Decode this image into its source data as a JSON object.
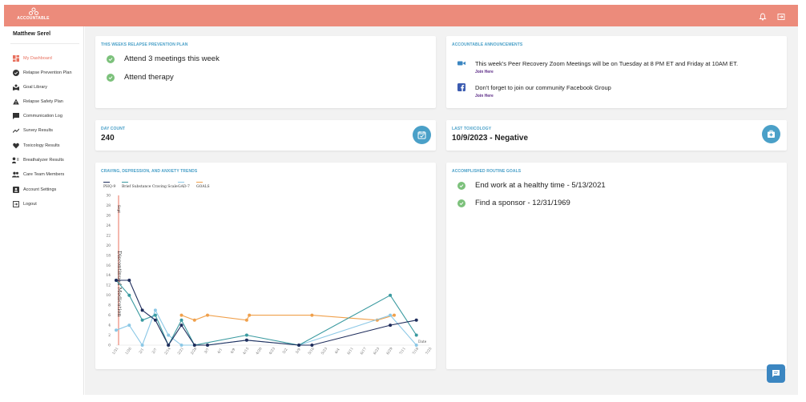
{
  "app": {
    "logo_text": "ACCOUNTABLE"
  },
  "topbar": {
    "icons": [
      "bell-icon",
      "logout-icon"
    ]
  },
  "sidebar": {
    "user_name": "Matthew Serel",
    "items": [
      {
        "label": "My Dashboard",
        "icon": "dashboard-icon",
        "active": true
      },
      {
        "label": "Relapse Prevention Plan",
        "icon": "check-circle-icon"
      },
      {
        "label": "Goal Library",
        "icon": "library-icon"
      },
      {
        "label": "Relapse Safety Plan",
        "icon": "warning-icon"
      },
      {
        "label": "Communication Log",
        "icon": "chat-icon"
      },
      {
        "label": "Survey Results",
        "icon": "trend-icon"
      },
      {
        "label": "Toxicology Results",
        "icon": "heart-icon"
      },
      {
        "label": "Breathalyzer Results",
        "icon": "breath-icon"
      },
      {
        "label": "Care Team Members",
        "icon": "people-icon"
      },
      {
        "label": "Account Settings",
        "icon": "account-icon"
      },
      {
        "label": "Logout",
        "icon": "logout-icon"
      }
    ]
  },
  "plan": {
    "title": "THIS WEEKS RELAPSE PREVENTION PLAN",
    "items": [
      "Attend 3 meetings this week",
      "Attend therapy"
    ]
  },
  "announcements": {
    "title": "ACCOUNTABLE ANNOUNCEMENTS",
    "items": [
      {
        "text": "This week's Peer Recovery Zoom Meetings will be on Tuesday at 8 PM ET and Friday at 10AM ET.",
        "link": "Join Here",
        "icon": "video-camera-icon"
      },
      {
        "text": "Don't forget to join our community Facebook Group",
        "link": "Join Here",
        "icon": "facebook-icon"
      }
    ]
  },
  "day_count": {
    "title": "DAY COUNT",
    "value": "240",
    "icon": "calendar-check-icon"
  },
  "toxicology": {
    "title": "LAST TOXICOLOGY",
    "value": "10/9/2023 - Negative",
    "icon": "medical-kit-icon"
  },
  "trends": {
    "title": "CRAVING, DEPRESSION, AND ANXIETY TRENDS",
    "legend": [
      "PHQ-9",
      "Brief Substance Craving Scale",
      "GAD-7",
      "GOALS"
    ],
    "annotation_vertical_top": "Sept",
    "annotation_vertical": "Discontinued Medication",
    "annotation_right": "Date"
  },
  "goals": {
    "title": "ACCOMPLISHED ROUTINE GOALS",
    "items": [
      "End work at a healthy time - 5/13/2021",
      "Find a sponsor - 12/31/1969"
    ]
  },
  "colors": {
    "accent": "#ec8b7b",
    "blue": "#4aa0c8",
    "phq9": "#1f2d5c",
    "craving": "#3a9aa0",
    "gad7": "#8cc8e6",
    "goals": "#f0a04b",
    "marker": "#e8705e"
  },
  "chart_data": {
    "type": "line",
    "title": "CRAVING, DEPRESSION, AND ANXIETY TRENDS",
    "xlabel": "Date",
    "ylabel": "",
    "ylim": [
      0,
      30
    ],
    "y_ticks": [
      0,
      2,
      4,
      6,
      8,
      10,
      12,
      14,
      16,
      18,
      20,
      22,
      24,
      26,
      28,
      30
    ],
    "categories": [
      "1/31",
      "1/26",
      "2/1",
      "2/7",
      "2/14",
      "2/21",
      "2/28",
      "3/7",
      "4/1",
      "4/9",
      "4/15",
      "4/20",
      "4/23",
      "5/2",
      "5/9",
      "5/16",
      "5/23",
      "6/4",
      "6/11",
      "6/17",
      "6/23",
      "6/29",
      "7/11",
      "7/18",
      "7/25"
    ],
    "series": [
      {
        "name": "PHQ-9",
        "points": [
          [
            0,
            13
          ],
          [
            1,
            13
          ],
          [
            2,
            7
          ],
          [
            3,
            5
          ],
          [
            4,
            0
          ],
          [
            5,
            4
          ],
          [
            6,
            0
          ],
          [
            7,
            0
          ],
          [
            10,
            1
          ],
          [
            14,
            0
          ],
          [
            15,
            0
          ],
          [
            21,
            4
          ],
          [
            23,
            5
          ]
        ]
      },
      {
        "name": "Brief Substance Craving Scale",
        "points": [
          [
            0,
            13
          ],
          [
            1,
            10
          ],
          [
            2,
            5
          ],
          [
            3,
            6
          ],
          [
            4,
            0
          ],
          [
            5,
            5
          ],
          [
            6,
            0
          ],
          [
            10,
            2
          ],
          [
            14,
            0
          ],
          [
            21,
            10
          ],
          [
            23,
            2
          ]
        ]
      },
      {
        "name": "GAD-7",
        "points": [
          [
            0,
            3
          ],
          [
            1,
            4
          ],
          [
            2,
            0
          ],
          [
            3,
            7
          ],
          [
            4,
            2
          ],
          [
            5,
            0
          ],
          [
            7,
            0
          ],
          [
            10,
            1
          ],
          [
            14,
            0
          ],
          [
            21,
            6
          ],
          [
            23,
            0
          ]
        ]
      },
      {
        "name": "GOALS",
        "points": [
          [
            5,
            6
          ],
          [
            6,
            5
          ],
          [
            7,
            6
          ],
          [
            10,
            5
          ],
          [
            10.2,
            6
          ],
          [
            15,
            6
          ],
          [
            20,
            5
          ],
          [
            21.3,
            6
          ]
        ]
      }
    ]
  }
}
